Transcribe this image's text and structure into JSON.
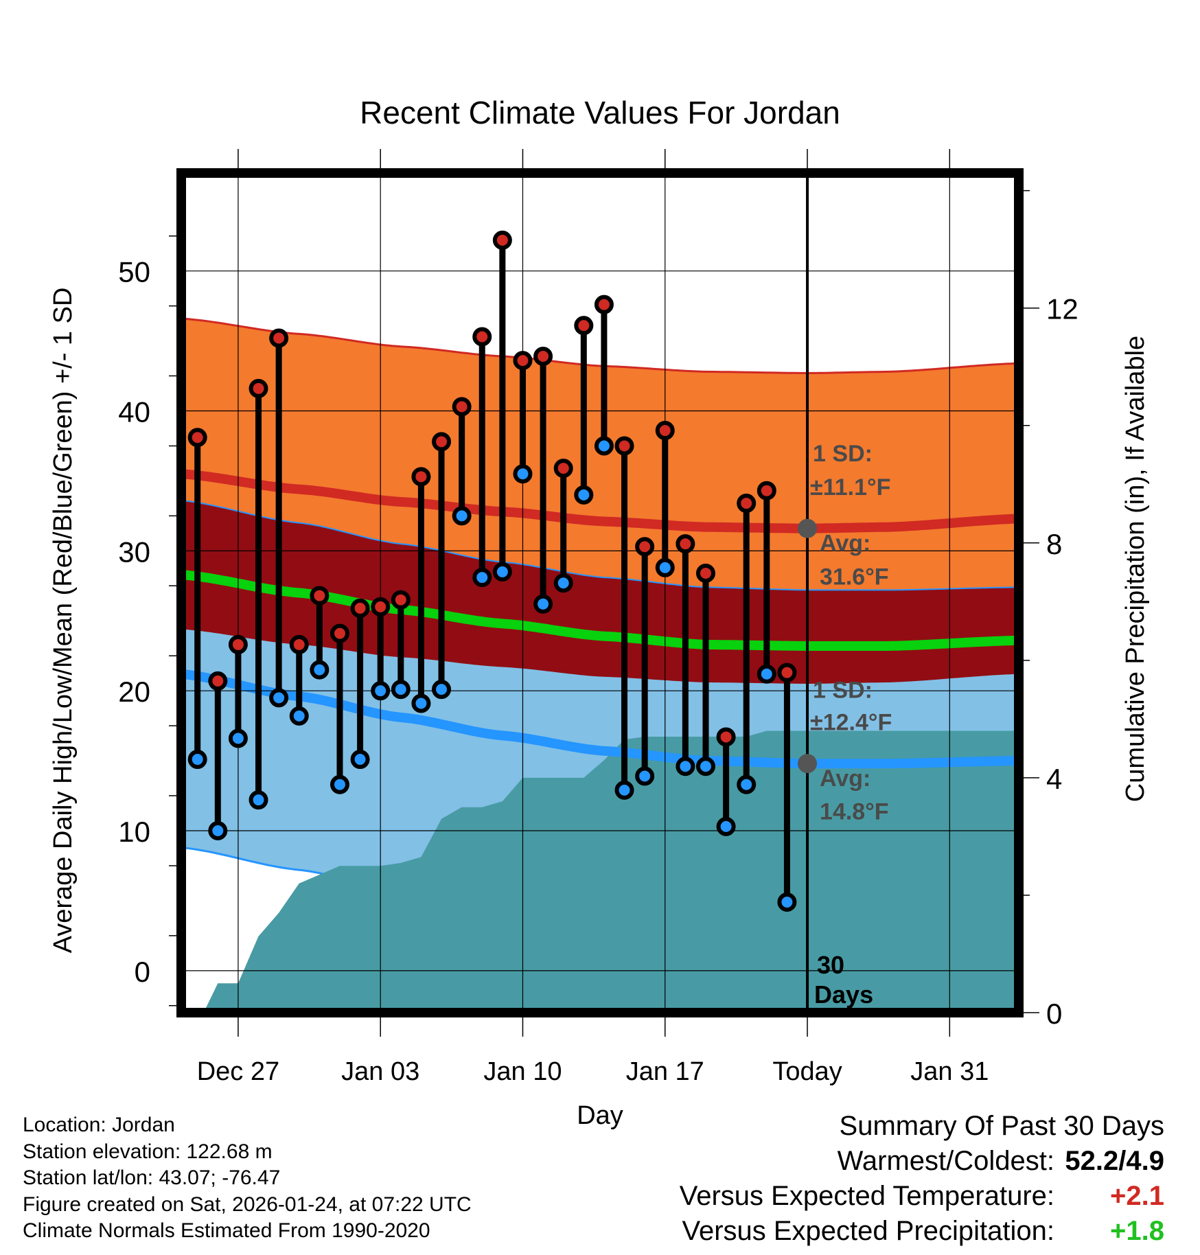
{
  "chart_data": {
    "type": "line",
    "title": "Recent Climate Values For Jordan",
    "xlabel": "Day",
    "ylabel": "Average Daily High/Low/Mean (Red/Blue/Green) +/- 1 SD",
    "y2label": "Cumulative Precipitation (in), If Available",
    "xlim": [
      -0.8,
      40.4
    ],
    "ylim": [
      -3,
      57
    ],
    "y2lim": [
      0,
      14.3
    ],
    "x_ticks": [
      {
        "x": 2,
        "label": "Dec 27"
      },
      {
        "x": 9,
        "label": "Jan 03"
      },
      {
        "x": 16,
        "label": "Jan 10"
      },
      {
        "x": 23,
        "label": "Jan 17"
      },
      {
        "x": 30,
        "label": "Today"
      },
      {
        "x": 37,
        "label": "Jan 31"
      }
    ],
    "y_ticks": [
      0,
      10,
      20,
      30,
      40,
      50
    ],
    "y2_ticks": [
      0,
      4,
      8,
      12
    ],
    "today_x": 30,
    "today_label": "30\nDays",
    "observed": {
      "days": [
        0,
        1,
        2,
        3,
        4,
        5,
        6,
        7,
        8,
        9,
        10,
        11,
        12,
        13,
        14,
        15,
        16,
        17,
        18,
        19,
        20,
        21,
        22,
        23,
        24,
        25,
        26,
        27,
        28,
        29
      ],
      "highs": [
        38.1,
        20.7,
        23.3,
        41.6,
        45.2,
        23.3,
        26.8,
        24.1,
        25.9,
        26.0,
        26.5,
        35.3,
        37.8,
        40.3,
        45.3,
        52.2,
        43.6,
        43.9,
        35.9,
        46.1,
        47.6,
        37.5,
        30.3,
        38.6,
        30.5,
        28.4,
        16.7,
        33.4,
        34.3,
        21.3
      ],
      "lows": [
        15.1,
        10.0,
        16.6,
        12.2,
        19.5,
        18.2,
        21.5,
        13.3,
        15.1,
        20.0,
        20.1,
        19.1,
        20.1,
        32.5,
        28.1,
        28.5,
        35.5,
        26.2,
        27.7,
        34.0,
        37.5,
        12.9,
        13.9,
        28.8,
        14.6,
        14.6,
        10.3,
        13.3,
        21.2,
        4.9
      ]
    },
    "normals": {
      "x": [
        -0.8,
        5,
        10,
        15,
        20,
        25,
        30,
        34,
        40.4
      ],
      "mean_high": [
        35.5,
        34.4,
        33.5,
        32.8,
        32.1,
        31.7,
        31.6,
        31.7,
        32.3
      ],
      "mean_low": [
        21.2,
        19.6,
        18.1,
        16.8,
        15.7,
        15.0,
        14.8,
        14.8,
        15.0
      ],
      "mean": [
        28.3,
        27.0,
        25.8,
        24.8,
        23.9,
        23.3,
        23.2,
        23.2,
        23.6
      ],
      "high_sd": 11.1,
      "low_sd": 12.4
    },
    "precip": {
      "x": [
        0.3,
        1,
        2,
        3,
        4,
        5,
        6,
        7,
        8,
        9,
        10,
        11,
        12,
        13,
        14,
        15,
        16,
        17,
        18,
        19,
        20,
        21,
        22,
        23,
        24,
        25,
        26,
        27,
        28,
        29,
        30,
        35,
        40.4
      ],
      "values": [
        0,
        0.5,
        0.5,
        1.3,
        1.7,
        2.2,
        2.35,
        2.5,
        2.5,
        2.5,
        2.55,
        2.65,
        3.3,
        3.5,
        3.5,
        3.6,
        4.0,
        4.0,
        4.0,
        4.0,
        4.3,
        4.65,
        4.7,
        4.7,
        4.7,
        4.7,
        4.7,
        4.7,
        4.8,
        4.8,
        4.8,
        4.8,
        4.8
      ]
    },
    "annotations": {
      "high_sd_label": "1 SD:",
      "high_sd_value": "±11.1°F",
      "high_avg_label": "Avg:",
      "high_avg_value": "31.6°F",
      "low_sd_label": "1 SD:",
      "low_sd_value": "±12.4°F",
      "low_avg_label": "Avg:",
      "low_avg_value": "14.8°F"
    },
    "colors": {
      "high_band": "#f47a2e",
      "overlap_band": "#910d13",
      "low_band": "#82c0e6",
      "high_line": "#d02a23",
      "low_line": "#2595ff",
      "mean_line": "#08d10d",
      "precip_fill": "#489ba4",
      "high_dot": "#d02a23",
      "low_dot": "#2595ff"
    }
  },
  "info": {
    "location": "Location: Jordan",
    "elevation": "Station elevation: 122.68 m",
    "latlon": "Station lat/lon: 43.07; -76.47",
    "created": "Figure created on Sat, 2026-01-24, at 07:22 UTC",
    "normals": "Climate Normals Estimated From 1990-2020"
  },
  "summary": {
    "title": "Summary Of Past 30 Days",
    "warm_cold_label": "Warmest/Coldest:",
    "warm_cold_value": "52.2/4.9",
    "temp_label": "Versus Expected Temperature:",
    "temp_value": "+2.1",
    "temp_color": "#d02a23",
    "precip_label": "Versus Expected Precipitation:",
    "precip_value": "+1.8",
    "precip_color": "#20c020"
  }
}
